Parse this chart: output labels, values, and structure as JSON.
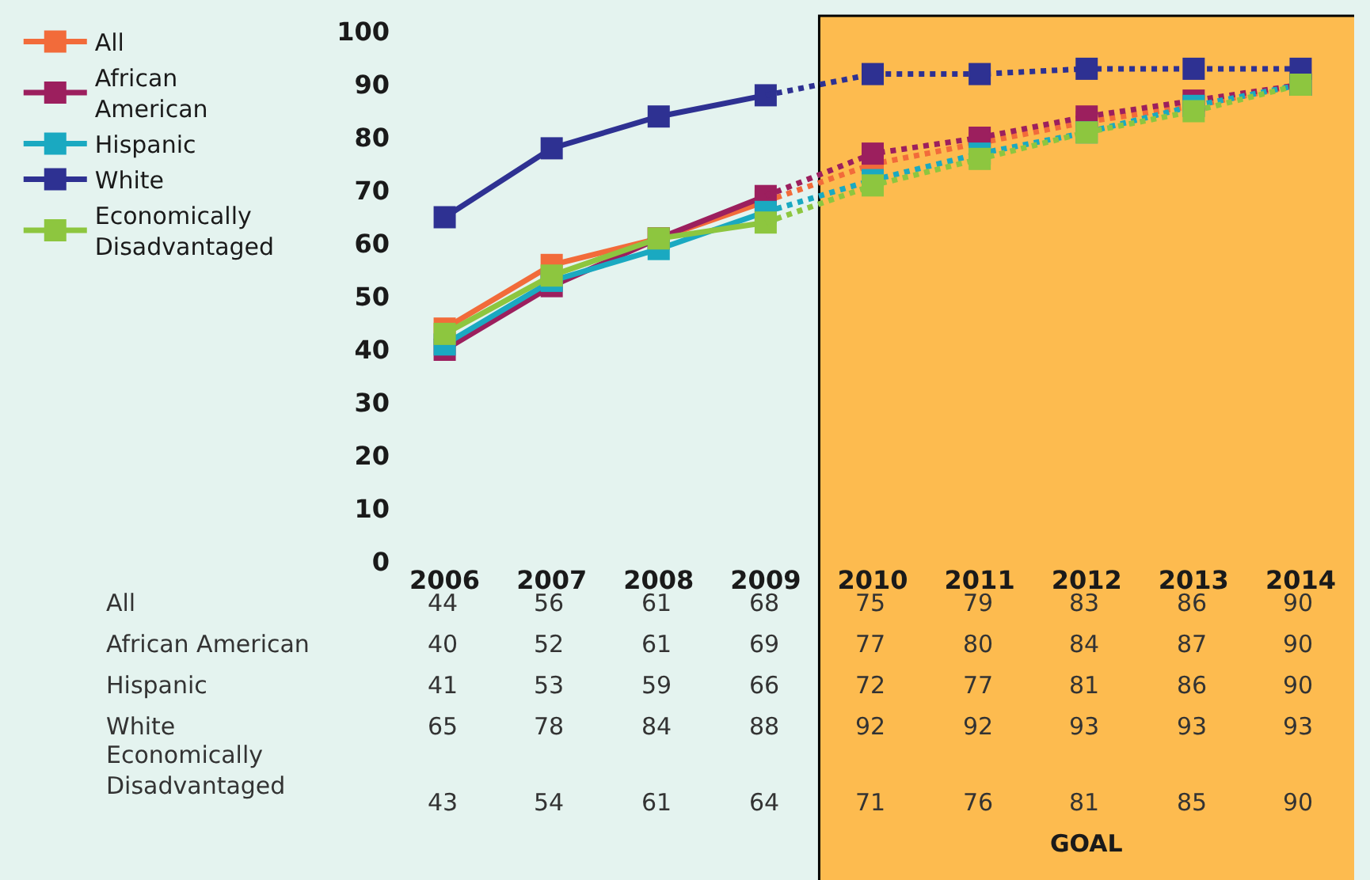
{
  "chart_data": {
    "type": "line",
    "categories": [
      "2006",
      "2007",
      "2008",
      "2009",
      "2010",
      "2011",
      "2012",
      "2013",
      "2014"
    ],
    "series": [
      {
        "name": "All",
        "color": "#f26b3a",
        "values": [
          44,
          56,
          61,
          68,
          75,
          79,
          83,
          86,
          90
        ]
      },
      {
        "name": "African American",
        "color": "#9c1f5e",
        "values": [
          40,
          52,
          61,
          69,
          77,
          80,
          84,
          87,
          90
        ]
      },
      {
        "name": "Hispanic",
        "color": "#1aa9c1",
        "values": [
          41,
          53,
          59,
          66,
          72,
          77,
          81,
          86,
          90
        ]
      },
      {
        "name": "White",
        "color": "#2e3192",
        "values": [
          65,
          78,
          84,
          88,
          92,
          92,
          93,
          93,
          93
        ]
      },
      {
        "name": "Economically Disadvantaged",
        "color": "#8dc63f",
        "values": [
          43,
          54,
          61,
          64,
          71,
          76,
          81,
          85,
          90
        ]
      }
    ],
    "ylim": [
      0,
      100
    ],
    "yticks": [
      0,
      10,
      20,
      30,
      40,
      50,
      60,
      70,
      80,
      90,
      100
    ],
    "bands": [
      {
        "axis": "x",
        "from": "2010",
        "to": "2014",
        "label": "GOAL",
        "color": "#fdbb4f"
      }
    ],
    "data_labels": true,
    "legend": "left",
    "marker": "square",
    "line_style": "solid",
    "grid": false
  }
}
